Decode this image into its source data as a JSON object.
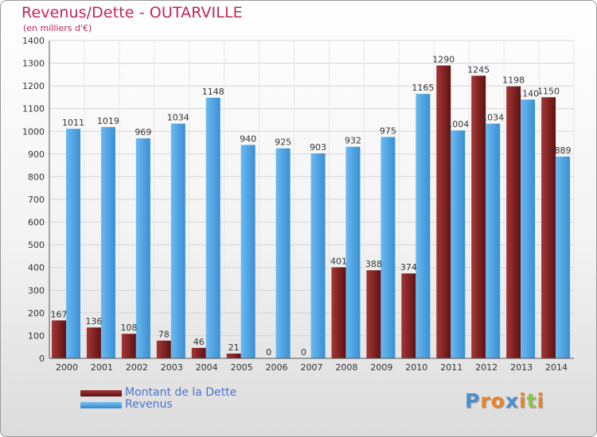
{
  "chart_data": {
    "type": "bar",
    "title": "Revenus/Dette - OUTARVILLE",
    "subtitle": "(en milliers d'€)",
    "categories": [
      "2000",
      "2001",
      "2002",
      "2003",
      "2004",
      "2005",
      "2006",
      "2007",
      "2008",
      "2009",
      "2010",
      "2011",
      "2012",
      "2013",
      "2014"
    ],
    "series": [
      {
        "name": "Montant de la Dette",
        "color": "#7a1c1c",
        "values": [
          167,
          136,
          108,
          78,
          46,
          21,
          0,
          0,
          401,
          388,
          374,
          1290,
          1245,
          1198,
          1150
        ]
      },
      {
        "name": "Revenus",
        "color": "#4ea6e6",
        "values": [
          1011,
          1019,
          969,
          1034,
          1148,
          940,
          925,
          903,
          932,
          975,
          1165,
          1004,
          1034,
          1140,
          889
        ]
      }
    ],
    "yticks": [
      0,
      100,
      200,
      300,
      400,
      500,
      600,
      700,
      800,
      900,
      1000,
      1100,
      1200,
      1300,
      1400
    ],
    "ylim": [
      0,
      1400
    ],
    "grid": true,
    "legend_position": "bottom-left"
  },
  "logo": {
    "letters": [
      {
        "char": "P",
        "color": "#4a8fd0"
      },
      {
        "char": "r",
        "color": "#e8832a"
      },
      {
        "char": "o",
        "color": "#e8832a"
      },
      {
        "char": "x",
        "color": "#4a8fd0"
      },
      {
        "char": "i",
        "color": "#e8832a"
      },
      {
        "char": "t",
        "color": "#8ec34a"
      },
      {
        "char": "i",
        "color": "#e8832a"
      }
    ]
  }
}
